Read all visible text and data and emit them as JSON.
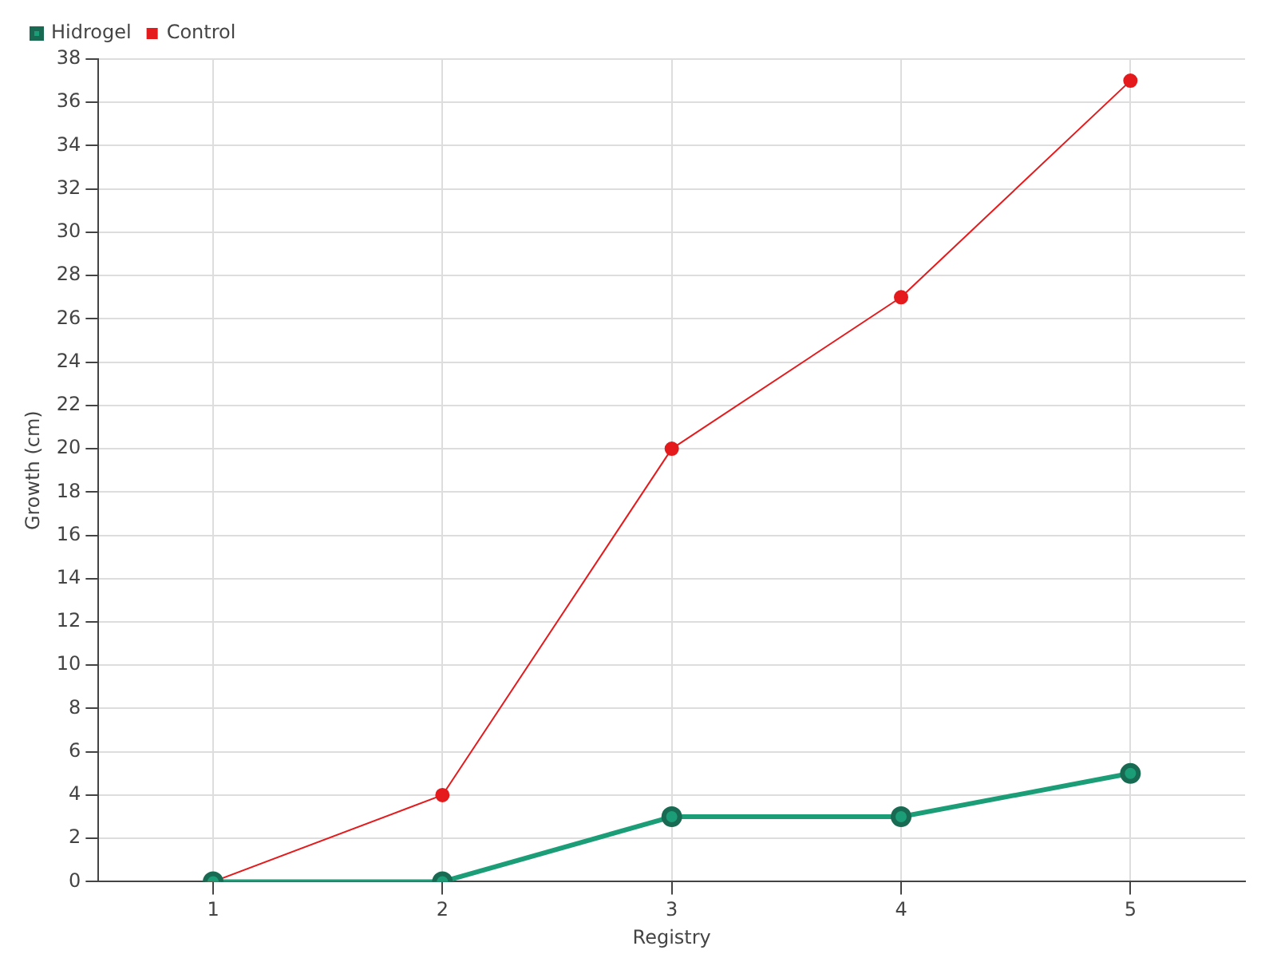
{
  "chart_data": {
    "type": "line",
    "xlabel": "Registry",
    "ylabel": "Growth (cm)",
    "x": [
      1,
      2,
      3,
      4,
      5
    ],
    "series": [
      {
        "name": "Hidrogel",
        "color": "#1b9e77",
        "values": [
          0,
          0,
          3,
          3,
          5
        ]
      },
      {
        "name": "Control",
        "color": "#e41a1c",
        "values": [
          0,
          4,
          20,
          27,
          37
        ]
      }
    ],
    "xlim": [
      0.5,
      5.5
    ],
    "xticks": [
      1,
      2,
      3,
      4,
      5
    ],
    "ylim": [
      0,
      38
    ],
    "yticks": [
      0,
      2,
      4,
      6,
      8,
      10,
      12,
      14,
      16,
      18,
      20,
      22,
      24,
      26,
      28,
      30,
      32,
      34,
      36,
      38
    ],
    "grid": true,
    "legend": "top left",
    "marker": "circle",
    "line_style": "solid"
  }
}
